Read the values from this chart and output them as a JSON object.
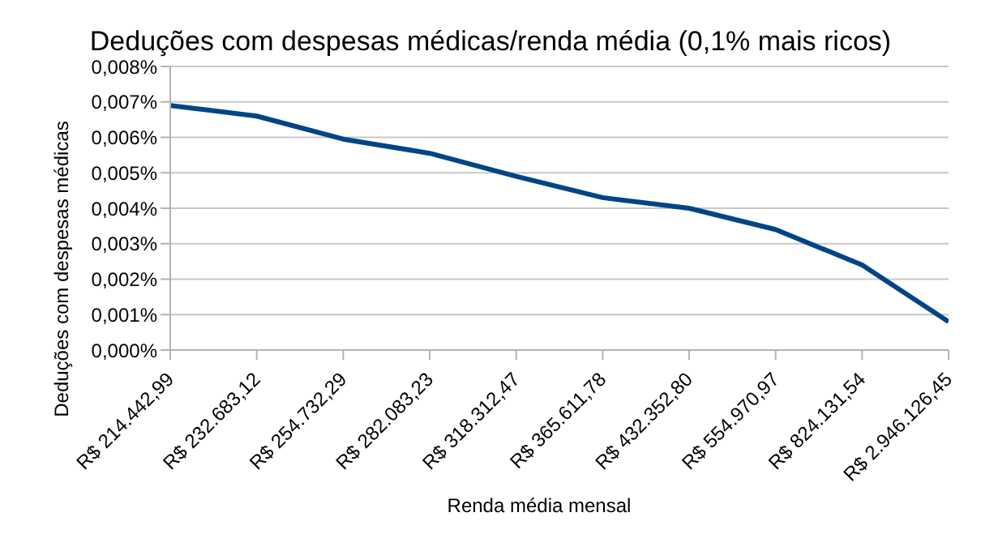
{
  "chart_data": {
    "type": "line",
    "title": "Deduções com despesas médicas/renda média (0,1% mais ricos)",
    "xlabel": "Renda média mensal",
    "ylabel": "Deduções com despesas médicas",
    "categories": [
      "R$ 214.442,99",
      "R$ 232.683,12",
      "R$ 254.732,29",
      "R$ 282.083,23",
      "R$ 318.312,47",
      "R$ 365.611,78",
      "R$ 432.352,80",
      "R$ 554.970,97",
      "R$ 824.131,54",
      "R$ 2.946.126,45"
    ],
    "series": [
      {
        "color": "#004586",
        "values": [
          0.0069,
          0.0066,
          0.00595,
          0.00555,
          0.0049,
          0.0043,
          0.004,
          0.0034,
          0.0024,
          0.0008
        ]
      }
    ],
    "ylim": [
      0,
      0.008
    ],
    "yticks": [
      {
        "value": 0,
        "label": "0,000%"
      },
      {
        "value": 0.001,
        "label": "0,001%"
      },
      {
        "value": 0.002,
        "label": "0,002%"
      },
      {
        "value": 0.003,
        "label": "0,003%"
      },
      {
        "value": 0.004,
        "label": "0,004%"
      },
      {
        "value": 0.005,
        "label": "0,005%"
      },
      {
        "value": 0.006,
        "label": "0,006%"
      },
      {
        "value": 0.007,
        "label": "0,007%"
      },
      {
        "value": 0.008,
        "label": "0,008%"
      }
    ],
    "grid": "y",
    "legend": false,
    "marker": "none",
    "line_style": "solid"
  }
}
